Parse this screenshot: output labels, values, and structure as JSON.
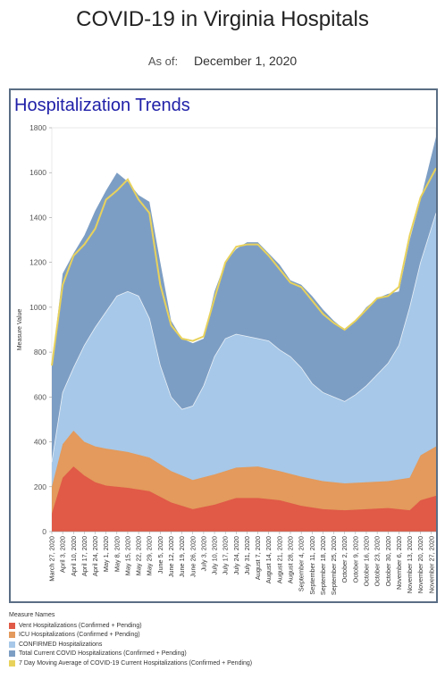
{
  "header": {
    "title": "COVID-19 in Virginia Hospitals",
    "asof_label": "As of:",
    "asof_date": "December 1, 2020"
  },
  "panel": {
    "title": "Hospitalization Trends"
  },
  "legend": {
    "title": "Measure Names",
    "items": [
      {
        "label": "Vent Hospitalizations (Confirmed + Pending)",
        "color": "#e05a47"
      },
      {
        "label": "ICU Hospitalizations (Confirmed + Pending)",
        "color": "#e39a5c"
      },
      {
        "label": "CONFIRMED Hospitalizations",
        "color": "#a7c8e8"
      },
      {
        "label": "Total Current COVID Hospitalizations (Confirmed + Pending)",
        "color": "#7d9ec4"
      },
      {
        "label": "7 Day Moving Average of COVID-19 Current Hospitalizations (Confirmed + Pending)",
        "color": "#e8d25c"
      }
    ]
  },
  "chart_data": {
    "type": "area",
    "ylabel": "Measure Value",
    "xlabel": "",
    "ylim": [
      0,
      1800
    ],
    "yticks": [
      0,
      200,
      400,
      600,
      800,
      1000,
      1200,
      1400,
      1600,
      1800
    ],
    "x_start": "2020-03-27",
    "x_end": "2020-11-30",
    "x_ticks": [
      "March 27, 2020",
      "April 3, 2020",
      "April 10, 2020",
      "April 17, 2020",
      "April 24, 2020",
      "May 1, 2020",
      "May 8, 2020",
      "May 15, 2020",
      "May 22, 2020",
      "May 29, 2020",
      "June 5, 2020",
      "June 12, 2020",
      "June 19, 2020",
      "June 26, 2020",
      "July 3, 2020",
      "July 10, 2020",
      "July 17, 2020",
      "July 24, 2020",
      "July 31, 2020",
      "August 7, 2020",
      "August 14, 2020",
      "August 21, 2020",
      "August 28, 2020",
      "September 4, 2020",
      "September 11, 2020",
      "September 18, 2020",
      "September 25, 2020",
      "October 2, 2020",
      "October 9, 2020",
      "October 16, 2020",
      "October 23, 2020",
      "October 30, 2020",
      "November 6, 2020",
      "November 13, 2020",
      "November 20, 2020",
      "November 27, 2020"
    ],
    "series": [
      {
        "name": "Vent Hospitalizations (Confirmed + Pending)",
        "color": "#e05a47",
        "x": [
          "2020-03-27",
          "2020-04-03",
          "2020-04-10",
          "2020-04-17",
          "2020-04-24",
          "2020-05-01",
          "2020-05-15",
          "2020-05-29",
          "2020-06-12",
          "2020-06-26",
          "2020-07-10",
          "2020-07-24",
          "2020-08-07",
          "2020-08-21",
          "2020-09-04",
          "2020-09-18",
          "2020-10-02",
          "2020-10-16",
          "2020-10-30",
          "2020-11-13",
          "2020-11-20",
          "2020-11-30"
        ],
        "values": [
          80,
          240,
          290,
          250,
          220,
          205,
          195,
          180,
          130,
          100,
          120,
          150,
          150,
          140,
          115,
          100,
          95,
          100,
          105,
          95,
          140,
          160
        ]
      },
      {
        "name": "ICU Hospitalizations (Confirmed + Pending)",
        "color": "#e39a5c",
        "x": [
          "2020-03-27",
          "2020-04-03",
          "2020-04-10",
          "2020-04-17",
          "2020-04-24",
          "2020-05-01",
          "2020-05-15",
          "2020-05-29",
          "2020-06-12",
          "2020-06-26",
          "2020-07-10",
          "2020-07-24",
          "2020-08-07",
          "2020-08-21",
          "2020-09-04",
          "2020-09-18",
          "2020-10-02",
          "2020-10-16",
          "2020-10-30",
          "2020-11-13",
          "2020-11-20",
          "2020-11-30"
        ],
        "values": [
          200,
          390,
          450,
          400,
          380,
          370,
          355,
          330,
          270,
          230,
          255,
          285,
          290,
          270,
          245,
          225,
          215,
          220,
          225,
          240,
          340,
          380
        ]
      },
      {
        "name": "CONFIRMED Hospitalizations",
        "color": "#a7c8e8",
        "x": [
          "2020-03-27",
          "2020-04-03",
          "2020-04-10",
          "2020-04-17",
          "2020-04-24",
          "2020-05-01",
          "2020-05-08",
          "2020-05-15",
          "2020-05-22",
          "2020-05-29",
          "2020-06-05",
          "2020-06-12",
          "2020-06-19",
          "2020-06-26",
          "2020-07-03",
          "2020-07-10",
          "2020-07-17",
          "2020-07-24",
          "2020-07-31",
          "2020-08-07",
          "2020-08-14",
          "2020-08-21",
          "2020-08-28",
          "2020-09-04",
          "2020-09-11",
          "2020-09-18",
          "2020-09-25",
          "2020-10-02",
          "2020-10-09",
          "2020-10-16",
          "2020-10-23",
          "2020-10-30",
          "2020-11-06",
          "2020-11-13",
          "2020-11-20",
          "2020-11-30"
        ],
        "values": [
          310,
          620,
          730,
          830,
          910,
          980,
          1050,
          1070,
          1050,
          950,
          740,
          600,
          545,
          560,
          650,
          780,
          860,
          880,
          870,
          860,
          850,
          810,
          780,
          730,
          660,
          620,
          600,
          580,
          610,
          650,
          700,
          750,
          830,
          1000,
          1200,
          1420
        ]
      },
      {
        "name": "Total Current COVID Hospitalizations (Confirmed + Pending)",
        "color": "#7d9ec4",
        "x": [
          "2020-03-27",
          "2020-04-03",
          "2020-04-10",
          "2020-04-17",
          "2020-04-24",
          "2020-05-01",
          "2020-05-08",
          "2020-05-15",
          "2020-05-22",
          "2020-05-29",
          "2020-06-05",
          "2020-06-12",
          "2020-06-19",
          "2020-06-26",
          "2020-07-03",
          "2020-07-10",
          "2020-07-17",
          "2020-07-24",
          "2020-07-31",
          "2020-08-07",
          "2020-08-14",
          "2020-08-21",
          "2020-08-28",
          "2020-09-04",
          "2020-09-11",
          "2020-09-18",
          "2020-09-25",
          "2020-10-02",
          "2020-10-09",
          "2020-10-16",
          "2020-10-23",
          "2020-10-30",
          "2020-11-06",
          "2020-11-13",
          "2020-11-20",
          "2020-11-30"
        ],
        "values": [
          740,
          1150,
          1240,
          1320,
          1430,
          1520,
          1600,
          1560,
          1500,
          1470,
          1200,
          940,
          860,
          840,
          860,
          1070,
          1200,
          1260,
          1290,
          1290,
          1240,
          1190,
          1120,
          1100,
          1050,
          990,
          940,
          900,
          940,
          1000,
          1040,
          1060,
          1070,
          1300,
          1480,
          1760
        ]
      },
      {
        "name": "7 Day Moving Average of COVID-19 Current Hospitalizations (Confirmed + Pending)",
        "color": "#e8d25c",
        "x": [
          "2020-03-27",
          "2020-04-03",
          "2020-04-10",
          "2020-04-17",
          "2020-04-24",
          "2020-05-01",
          "2020-05-08",
          "2020-05-15",
          "2020-05-22",
          "2020-05-29",
          "2020-06-05",
          "2020-06-12",
          "2020-06-19",
          "2020-06-26",
          "2020-07-03",
          "2020-07-10",
          "2020-07-17",
          "2020-07-24",
          "2020-07-31",
          "2020-08-07",
          "2020-08-14",
          "2020-08-21",
          "2020-08-28",
          "2020-09-04",
          "2020-09-11",
          "2020-09-18",
          "2020-09-25",
          "2020-10-02",
          "2020-10-09",
          "2020-10-16",
          "2020-10-23",
          "2020-10-30",
          "2020-11-06",
          "2020-11-13",
          "2020-11-20",
          "2020-11-30"
        ],
        "values": [
          740,
          1100,
          1230,
          1280,
          1350,
          1480,
          1520,
          1570,
          1480,
          1420,
          1100,
          920,
          860,
          850,
          870,
          1040,
          1200,
          1270,
          1280,
          1280,
          1230,
          1170,
          1110,
          1090,
          1030,
          970,
          930,
          900,
          940,
          990,
          1040,
          1050,
          1090,
          1320,
          1490,
          1620
        ]
      }
    ]
  }
}
